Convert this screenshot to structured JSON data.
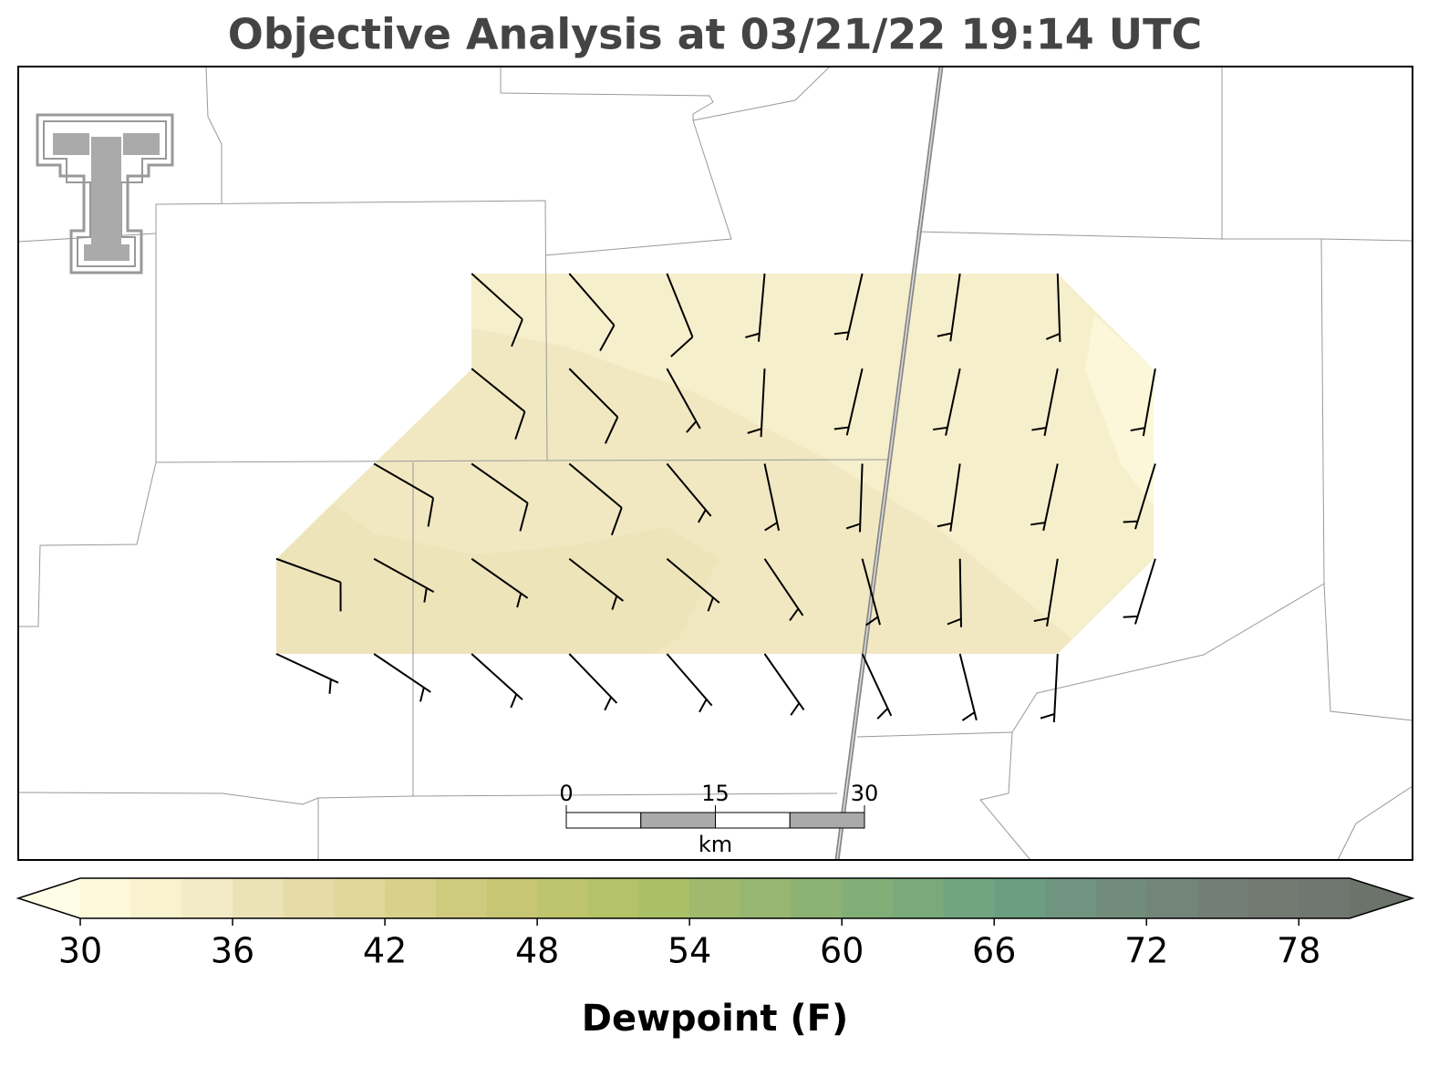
{
  "title": "Objective Analysis at 03/21/22 19:14 UTC",
  "colorbar": {
    "label": "Dewpoint (F)",
    "lim": [
      30,
      80
    ],
    "ticks": [
      30,
      36,
      42,
      48,
      54,
      60,
      66,
      72,
      78
    ],
    "colors": [
      "#fdf9d9",
      "#f8f2cf",
      "#f2ebc5",
      "#ebe2b6",
      "#e6dca8",
      "#e0d699",
      "#d8d08b",
      "#cfcb7e",
      "#c6c674",
      "#bec56d",
      "#b4c268",
      "#a9c066",
      "#9fba6c",
      "#96b672",
      "#8cb374",
      "#82ae77",
      "#7aa97b",
      "#72a57f",
      "#6c9f82",
      "#6f9580",
      "#728c7c",
      "#738579",
      "#737f76",
      "#727a72",
      "#707670"
    ],
    "under_color": "#fefde6",
    "over_color": "#6b736b"
  },
  "scale_bar": {
    "ticks": [
      0,
      15,
      30
    ],
    "unit": "km"
  },
  "wind_barbs": {
    "direction": [
      [
        null,
        null,
        132,
        139,
        158,
        185,
        193,
        188,
        178,
        null
      ],
      [
        null,
        null,
        129,
        135,
        151,
        183,
        193,
        192,
        191,
        190
      ],
      [
        null,
        120,
        125,
        130,
        140,
        168,
        182,
        188,
        192,
        197
      ],
      [
        110,
        119,
        125,
        128,
        130,
        146,
        165,
        179,
        189,
        197
      ],
      [
        115,
        124,
        132,
        136,
        139,
        145,
        155,
        166,
        183,
        null
      ]
    ],
    "speed": [
      [
        null,
        null,
        10,
        10,
        10,
        5,
        5,
        5,
        5,
        null
      ],
      [
        null,
        null,
        10,
        10,
        5,
        5,
        5,
        5,
        5,
        5
      ],
      [
        null,
        10,
        10,
        10,
        5,
        5,
        5,
        5,
        5,
        5
      ],
      [
        10,
        5,
        5,
        5,
        5,
        5,
        5,
        5,
        5,
        5
      ],
      [
        5,
        5,
        5,
        5,
        5,
        5,
        5,
        5,
        5,
        null
      ]
    ]
  }
}
